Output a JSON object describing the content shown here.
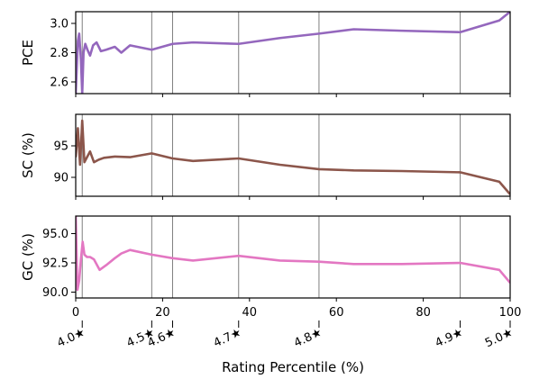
{
  "chart_data": {
    "type": "line",
    "xlabel": "Rating Percentile (%)",
    "xlim": [
      0,
      100
    ],
    "x_ticks": [
      0,
      20,
      40,
      60,
      80,
      100
    ],
    "rating_markers": [
      {
        "x": 1.5,
        "label": "4.0★"
      },
      {
        "x": 17.5,
        "label": "4.5★"
      },
      {
        "x": 22.3,
        "label": "4.6★"
      },
      {
        "x": 37.5,
        "label": "4.7★"
      },
      {
        "x": 56.0,
        "label": "4.8★"
      },
      {
        "x": 88.5,
        "label": "4.9★"
      },
      {
        "x": 100,
        "label": "5.0★"
      }
    ],
    "panels": [
      {
        "ylabel": "PCE",
        "color": "#9467bd",
        "ylim": [
          2.52,
          3.08
        ],
        "y_ticks": [
          2.6,
          2.8,
          3.0
        ],
        "y_tick_labels": [
          "2.6",
          "2.8",
          "3.0"
        ],
        "x": [
          0,
          0.5,
          0.8,
          1.2,
          1.5,
          1.8,
          2.2,
          2.7,
          3.3,
          4.0,
          4.8,
          5.8,
          7,
          9,
          10.5,
          12.5,
          17.5,
          22.3,
          27,
          37.5,
          47,
          56,
          64,
          75,
          88.5,
          97.5,
          100
        ],
        "y": [
          2.52,
          2.88,
          2.93,
          2.75,
          2.52,
          2.8,
          2.86,
          2.82,
          2.78,
          2.85,
          2.87,
          2.81,
          2.82,
          2.84,
          2.8,
          2.85,
          2.82,
          2.86,
          2.87,
          2.86,
          2.9,
          2.93,
          2.96,
          2.95,
          2.94,
          3.02,
          3.08
        ]
      },
      {
        "ylabel": "SC (%)",
        "color": "#8c564b",
        "ylim": [
          87,
          100
        ],
        "y_ticks": [
          90,
          95
        ],
        "y_tick_labels": [
          "90",
          "95"
        ],
        "x": [
          0,
          0.5,
          1.0,
          1.5,
          2.0,
          2.6,
          3.3,
          4.2,
          5.3,
          6.5,
          9,
          12.5,
          17.5,
          22.3,
          27,
          37.5,
          47,
          56,
          64,
          75,
          88.5,
          97.5,
          100
        ],
        "y": [
          93.2,
          97.8,
          92.0,
          99.0,
          92.4,
          93.2,
          94.1,
          92.4,
          92.8,
          93.1,
          93.3,
          93.2,
          93.8,
          93.0,
          92.6,
          93.0,
          92.0,
          91.3,
          91.1,
          91.0,
          90.8,
          89.3,
          87.3
        ]
      },
      {
        "ylabel": "GC (%)",
        "color": "#e377c2",
        "ylim": [
          89.5,
          96.5
        ],
        "y_ticks": [
          90.0,
          92.5,
          95.0
        ],
        "y_tick_labels": [
          "90.0",
          "92.5",
          "95.0"
        ],
        "x": [
          0,
          0.4,
          0.8,
          1.2,
          1.6,
          2.0,
          2.6,
          3.3,
          4.2,
          5.5,
          7,
          9,
          10.5,
          12.5,
          17.5,
          22.3,
          27,
          37.5,
          47,
          56,
          64,
          75,
          88.5,
          97.5,
          100
        ],
        "y": [
          96.5,
          90.2,
          91.0,
          92.8,
          94.3,
          93.2,
          93.0,
          93.0,
          92.8,
          91.9,
          92.3,
          92.9,
          93.3,
          93.6,
          93.2,
          92.9,
          92.7,
          93.1,
          92.7,
          92.6,
          92.4,
          92.4,
          92.5,
          91.9,
          90.8
        ]
      }
    ]
  }
}
